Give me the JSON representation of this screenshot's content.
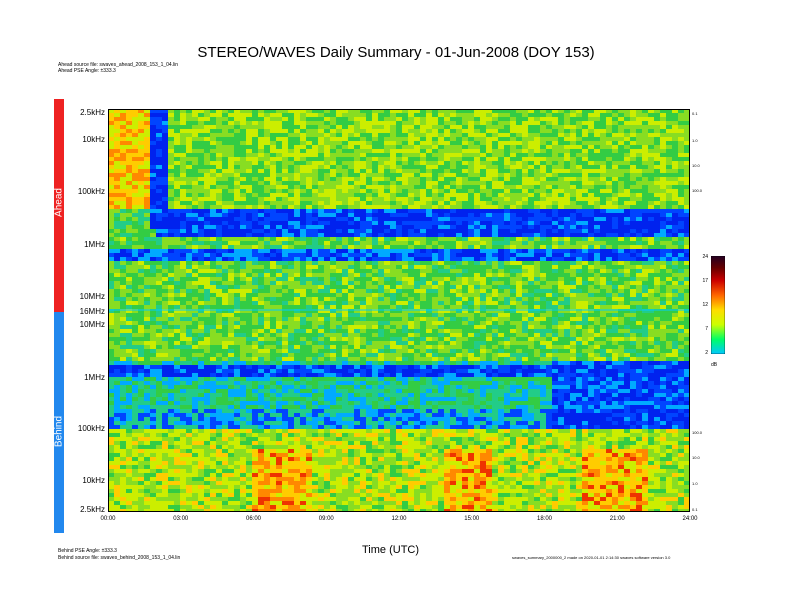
{
  "title": "STEREO/WAVES Daily Summary - 01-Jun-2008 (DOY 153)",
  "header_notes": {
    "ahead_source": "Ahead source file: swaves_ahead_2008_153_1_04.lin",
    "ahead_pse": "Ahead PSE Angle: ±333.3"
  },
  "footer_notes": {
    "behind_pse": "Behind PSE Angle: ±333.3",
    "behind_source": "Behind source file: swaves_behind_2008_153_1_04.lin",
    "generator": "swaves_summary_2000000_2 made on 2020-01-01 2:14:30 swaves software version 3.0"
  },
  "spacecraft_bars": {
    "ahead": {
      "label": "Ahead",
      "color": "#ee2222"
    },
    "behind": {
      "label": "Behind",
      "color": "#2288ee"
    }
  },
  "chart_data": {
    "type": "heatmap",
    "title": "STEREO/WAVES Daily Summary - 01-Jun-2008 (DOY 153)",
    "xlabel": "Time (UTC)",
    "x_ticks": [
      "00:00",
      "03:00",
      "06:00",
      "09:00",
      "12:00",
      "15:00",
      "18:00",
      "21:00",
      "24:00"
    ],
    "x_range_hours": [
      0,
      24
    ],
    "ahead_panel": {
      "y_ticks": [
        "2.5kHz",
        "10kHz",
        "100kHz",
        "1MHz",
        "10MHz",
        "16MHz"
      ],
      "frequency_range": [
        "2.5kHz",
        "16MHz"
      ],
      "scale": "log"
    },
    "behind_panel": {
      "y_ticks": [
        "10MHz",
        "1MHz",
        "100kHz",
        "10kHz",
        "2.5kHz"
      ],
      "frequency_range": [
        "2.5kHz",
        "16MHz"
      ],
      "scale": "log"
    },
    "right_axis_ticks_ahead": [
      "0.1",
      "1.0",
      "10.0",
      "100.0"
    ],
    "right_axis_ticks_behind": [
      "100.0",
      "10.0",
      "1.0",
      "0.1"
    ],
    "colorbar": {
      "label": "dB",
      "ticks": [
        "24",
        "17",
        "12",
        "7",
        "2"
      ],
      "range": [
        2,
        24
      ],
      "colors": [
        "#00c8ff",
        "#00ff66",
        "#ccff00",
        "#ffdd00",
        "#ff6600",
        "#cc0000",
        "#660000",
        "#220022"
      ]
    },
    "background_colors": {
      "low": "#0022ee",
      "mid": "#33cc66",
      "high": "#ffcc00",
      "burst": "#ee3300"
    }
  }
}
